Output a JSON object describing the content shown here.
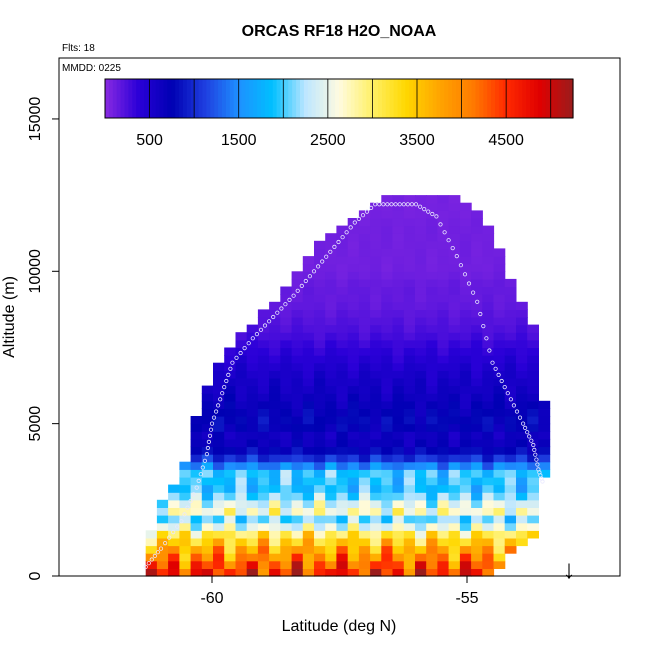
{
  "chart_data": {
    "type": "heatmap",
    "title": "ORCAS RF18 H2O_NOAA",
    "annotations": {
      "flights": "Flts: 18",
      "date": "MMDD: 0225"
    },
    "xlabel": "Latitude (deg N)",
    "ylabel": "Altitude (m)",
    "xlim": [
      -63,
      -52
    ],
    "ylim": [
      0,
      17000
    ],
    "xticks": [
      {
        "value": -60,
        "label": "-60"
      },
      {
        "value": -55,
        "label": "-55"
      }
    ],
    "yticks": [
      {
        "value": 0,
        "label": "0"
      },
      {
        "value": 5000,
        "label": "5000"
      },
      {
        "value": 10000,
        "label": "10000"
      },
      {
        "value": 15000,
        "label": "15000"
      }
    ],
    "colorbar": {
      "range": [
        0,
        5250
      ],
      "tick_values": [
        500,
        1500,
        2500,
        3500,
        4500
      ],
      "tick_labels": [
        "500",
        "1500",
        "2500",
        "3500",
        "4500"
      ],
      "colors": [
        "#8a2be2",
        "#2b00d8",
        "#0000b3",
        "#1f3fe0",
        "#1e90ff",
        "#00bfff",
        "#bde6ff",
        "#fffbe0",
        "#fff066",
        "#ffd700",
        "#ffa500",
        "#ff7b00",
        "#ff2a00",
        "#e00000",
        "#9b1c1c"
      ]
    },
    "arrow": {
      "latitude": -53.0,
      "direction": "down",
      "symbol": "↓"
    },
    "envelope": {
      "latitudes": [
        -61.3,
        -61.2,
        -61.0,
        -60.5,
        -60.3,
        -60.0,
        -59.5,
        -58.8,
        -58.3,
        -57.6,
        -56.8,
        -55.9,
        -55.3,
        -54.6,
        -54.3,
        -54.0,
        -53.7,
        -53.6,
        -53.5,
        -53.45
      ],
      "alt_top": [
        400,
        1300,
        2300,
        3600,
        5100,
        6500,
        7700,
        8900,
        10000,
        11300,
        12200,
        12500,
        12400,
        11500,
        10200,
        9000,
        8000,
        7000,
        5800,
        4800
      ],
      "alt_bottom": [
        300,
        200,
        150,
        100,
        50,
        0,
        0,
        0,
        0,
        0,
        0,
        0,
        0,
        100,
        600,
        1000,
        1500,
        2000,
        3000,
        4400
      ]
    },
    "h2o_profile": {
      "altitudes": [
        0,
        300,
        600,
        900,
        1200,
        1500,
        1800,
        2100,
        2400,
        2700,
        3000,
        3300,
        3600,
        3900,
        4200,
        4600,
        5000,
        5500,
        6000,
        6500,
        7000,
        7500,
        8000,
        8500,
        9000,
        9500,
        10000,
        10500,
        11000,
        11500,
        12000,
        12500
      ],
      "h2o": [
        4700,
        4400,
        4000,
        3700,
        3300,
        2900,
        1900,
        2700,
        2400,
        2000,
        1800,
        2100,
        1500,
        1000,
        700,
        600,
        800,
        700,
        600,
        550,
        450,
        350,
        250,
        200,
        150,
        150,
        100,
        100,
        100,
        100,
        80,
        80
      ]
    },
    "flight_track": {
      "latitude": [
        -61.3,
        -61.0,
        -60.6,
        -60.3,
        -60.1,
        -60.0,
        -59.8,
        -59.6,
        -59.2,
        -58.8,
        -58.4,
        -58.0,
        -57.6,
        -57.2,
        -56.8,
        -56.4,
        -56.0,
        -55.6,
        -55.2,
        -54.8,
        -54.5,
        -54.2,
        -53.9,
        -53.7,
        -53.6,
        -53.5
      ],
      "altitude": [
        300,
        900,
        1800,
        2900,
        4000,
        5000,
        6000,
        7000,
        7800,
        8500,
        9200,
        10000,
        10800,
        11600,
        12200,
        12200,
        12200,
        11800,
        10500,
        9000,
        7000,
        6000,
        5000,
        4300,
        3500,
        3000
      ]
    }
  }
}
